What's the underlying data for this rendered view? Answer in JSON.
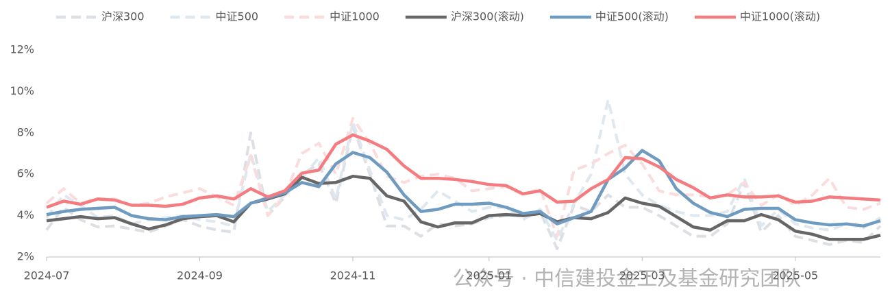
{
  "chart_data": {
    "type": "line",
    "categories": [
      "2024-07",
      null,
      null,
      null,
      null,
      null,
      null,
      null,
      null,
      "2024-09",
      null,
      null,
      null,
      null,
      null,
      null,
      null,
      null,
      "2024-11",
      null,
      null,
      null,
      null,
      null,
      null,
      null,
      "2025-01",
      null,
      null,
      null,
      null,
      null,
      null,
      null,
      null,
      "2025-03",
      null,
      null,
      null,
      null,
      null,
      null,
      null,
      null,
      "2025-05",
      null,
      null,
      null,
      null,
      null
    ],
    "series": [
      {
        "name": "沪深300",
        "color": "#dcdfe3",
        "dash": true,
        "values": [
          3.3,
          4.4,
          3.8,
          3.45,
          3.5,
          3.35,
          3.2,
          3.5,
          3.8,
          3.5,
          3.3,
          3.2,
          8.0,
          4.0,
          4.9,
          6.0,
          6.5,
          4.6,
          8.3,
          6.0,
          3.5,
          3.5,
          3.0,
          3.6,
          3.5,
          3.6,
          3.9,
          4.0,
          4.1,
          4.2,
          2.4,
          4.5,
          4.2,
          5.0,
          4.4,
          4.4,
          4.0,
          3.5,
          3.0,
          3.0,
          3.6,
          5.6,
          3.2,
          4.0,
          3.0,
          2.8,
          2.6,
          2.8,
          2.7,
          3.5
        ]
      },
      {
        "name": "中证500",
        "color": "#dfe7ef",
        "dash": true,
        "values": [
          3.9,
          5.0,
          4.5,
          3.9,
          4.0,
          3.6,
          3.8,
          3.9,
          4.0,
          3.8,
          3.7,
          3.5,
          7.0,
          4.2,
          5.0,
          5.8,
          6.8,
          4.8,
          8.5,
          6.2,
          4.0,
          3.8,
          4.3,
          5.2,
          4.7,
          4.2,
          4.4,
          4.4,
          3.8,
          4.3,
          2.8,
          4.6,
          6.0,
          9.6,
          6.0,
          5.0,
          4.5,
          4.2,
          4.0,
          4.0,
          4.2,
          5.8,
          3.5,
          4.3,
          3.6,
          3.4,
          3.3,
          3.6,
          3.4,
          3.9
        ]
      },
      {
        "name": "中证1000",
        "color": "#fbdcdc",
        "dash": true,
        "values": [
          4.6,
          5.3,
          4.6,
          4.8,
          4.8,
          4.5,
          4.6,
          4.9,
          5.1,
          5.3,
          4.9,
          4.5,
          6.9,
          4.0,
          5.0,
          7.0,
          7.5,
          6.0,
          8.7,
          7.5,
          5.9,
          5.6,
          5.9,
          6.0,
          5.8,
          5.2,
          5.3,
          5.4,
          5.0,
          5.3,
          3.0,
          6.2,
          6.5,
          7.0,
          7.4,
          6.5,
          5.2,
          5.0,
          5.0,
          4.9,
          5.0,
          5.6,
          4.5,
          5.0,
          4.5,
          5.0,
          5.8,
          4.4,
          4.3,
          4.6
        ]
      },
      {
        "name": "沪深300(滚动)",
        "color": "#666666",
        "dash": false,
        "values": [
          3.75,
          3.85,
          3.95,
          3.85,
          3.9,
          3.6,
          3.35,
          3.55,
          3.85,
          3.95,
          4.0,
          3.7,
          4.6,
          4.8,
          5.05,
          5.85,
          5.55,
          5.6,
          5.9,
          5.8,
          4.95,
          4.7,
          3.7,
          3.45,
          3.65,
          3.65,
          4.0,
          4.05,
          4.0,
          4.1,
          3.7,
          3.9,
          3.85,
          4.15,
          4.85,
          4.6,
          4.45,
          3.95,
          3.45,
          3.3,
          3.75,
          3.75,
          4.05,
          3.8,
          3.25,
          3.1,
          2.85,
          2.85,
          2.85,
          3.05
        ]
      },
      {
        "name": "中证500(滚动)",
        "color": "#6f9bc0",
        "dash": false,
        "values": [
          4.05,
          4.2,
          4.3,
          4.35,
          4.4,
          4.0,
          3.85,
          3.8,
          3.95,
          4.0,
          4.05,
          3.95,
          4.6,
          4.85,
          5.1,
          5.6,
          5.4,
          6.5,
          7.05,
          6.8,
          6.1,
          5.0,
          4.2,
          4.3,
          4.55,
          4.55,
          4.6,
          4.4,
          4.1,
          4.2,
          3.6,
          3.9,
          4.2,
          5.75,
          6.3,
          7.15,
          6.65,
          5.3,
          4.6,
          4.15,
          3.95,
          4.3,
          4.35,
          4.35,
          3.8,
          3.65,
          3.55,
          3.6,
          3.5,
          3.75
        ]
      },
      {
        "name": "中证1000(滚动)",
        "color": "#f47b7f",
        "dash": false,
        "values": [
          4.4,
          4.7,
          4.55,
          4.8,
          4.75,
          4.5,
          4.5,
          4.45,
          4.55,
          4.85,
          4.95,
          4.8,
          5.3,
          4.9,
          5.2,
          6.05,
          6.2,
          7.45,
          7.9,
          7.6,
          7.2,
          6.4,
          5.8,
          5.8,
          5.75,
          5.65,
          5.5,
          5.45,
          5.05,
          5.2,
          4.65,
          4.7,
          5.3,
          5.75,
          6.8,
          6.75,
          6.35,
          5.75,
          5.35,
          4.85,
          5.0,
          4.9,
          4.9,
          4.95,
          4.65,
          4.7,
          4.9,
          4.85,
          4.8,
          4.75
        ]
      }
    ],
    "ylim": [
      2,
      12
    ],
    "yticks": [
      {
        "value": 2,
        "label": "2%"
      },
      {
        "value": 4,
        "label": "4%"
      },
      {
        "value": 6,
        "label": "6%"
      },
      {
        "value": 8,
        "label": "8%"
      },
      {
        "value": 10,
        "label": "10%"
      },
      {
        "value": 12,
        "label": "12%"
      }
    ],
    "grid": false,
    "legend": "top",
    "annotation": "公众号 · 中信建投金工及基金研究团队"
  }
}
